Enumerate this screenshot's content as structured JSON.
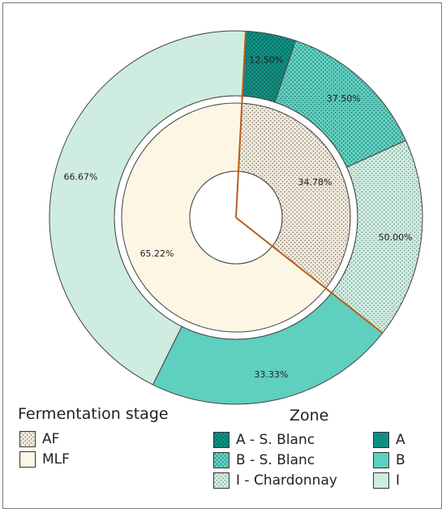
{
  "chart_data": {
    "type": "pie",
    "variant": "nested-donut",
    "inner_ring": {
      "legend_title": "Fermentation stage",
      "slices": [
        {
          "name": "AF",
          "value": 34.78,
          "label": "34.78%",
          "color": "#efe9dc",
          "pattern": "dots"
        },
        {
          "name": "MLF",
          "value": 65.22,
          "label": "65.22%",
          "color": "#fdf6e4",
          "pattern": "none"
        }
      ]
    },
    "outer_ring": {
      "legend_title": "Zone",
      "slices": [
        {
          "parent": "AF",
          "name": "A - S. Blanc",
          "value": 12.5,
          "label": "12.50%",
          "color": "#0f8f82",
          "pattern": "dots"
        },
        {
          "parent": "AF",
          "name": "B - S. Blanc",
          "value": 37.5,
          "label": "37.50%",
          "color": "#5fcfbf",
          "pattern": "dots"
        },
        {
          "parent": "AF",
          "name": "I - Chardonnay",
          "value": 50.0,
          "label": "50.00%",
          "color": "#cfece0",
          "pattern": "dots"
        },
        {
          "parent": "MLF",
          "name": "B",
          "value": 33.33,
          "label": "33.33%",
          "color": "#5fcfbf",
          "pattern": "none"
        },
        {
          "parent": "MLF",
          "name": "I",
          "value": 66.67,
          "label": "66.67%",
          "color": "#cfece0",
          "pattern": "none"
        }
      ]
    },
    "legend_zone": [
      {
        "label": "A - S. Blanc",
        "color": "#0f8f82",
        "pattern": "dots"
      },
      {
        "label": "B - S. Blanc",
        "color": "#5fcfbf",
        "pattern": "dots"
      },
      {
        "label": "I - Chardonnay",
        "color": "#cfece0",
        "pattern": "dots"
      },
      {
        "label": "A",
        "color": "#0f8f82",
        "pattern": "none"
      },
      {
        "label": "B",
        "color": "#5fcfbf",
        "pattern": "none"
      },
      {
        "label": "I",
        "color": "#cfece0",
        "pattern": "none"
      }
    ],
    "divider_color": "#b85c1c"
  }
}
